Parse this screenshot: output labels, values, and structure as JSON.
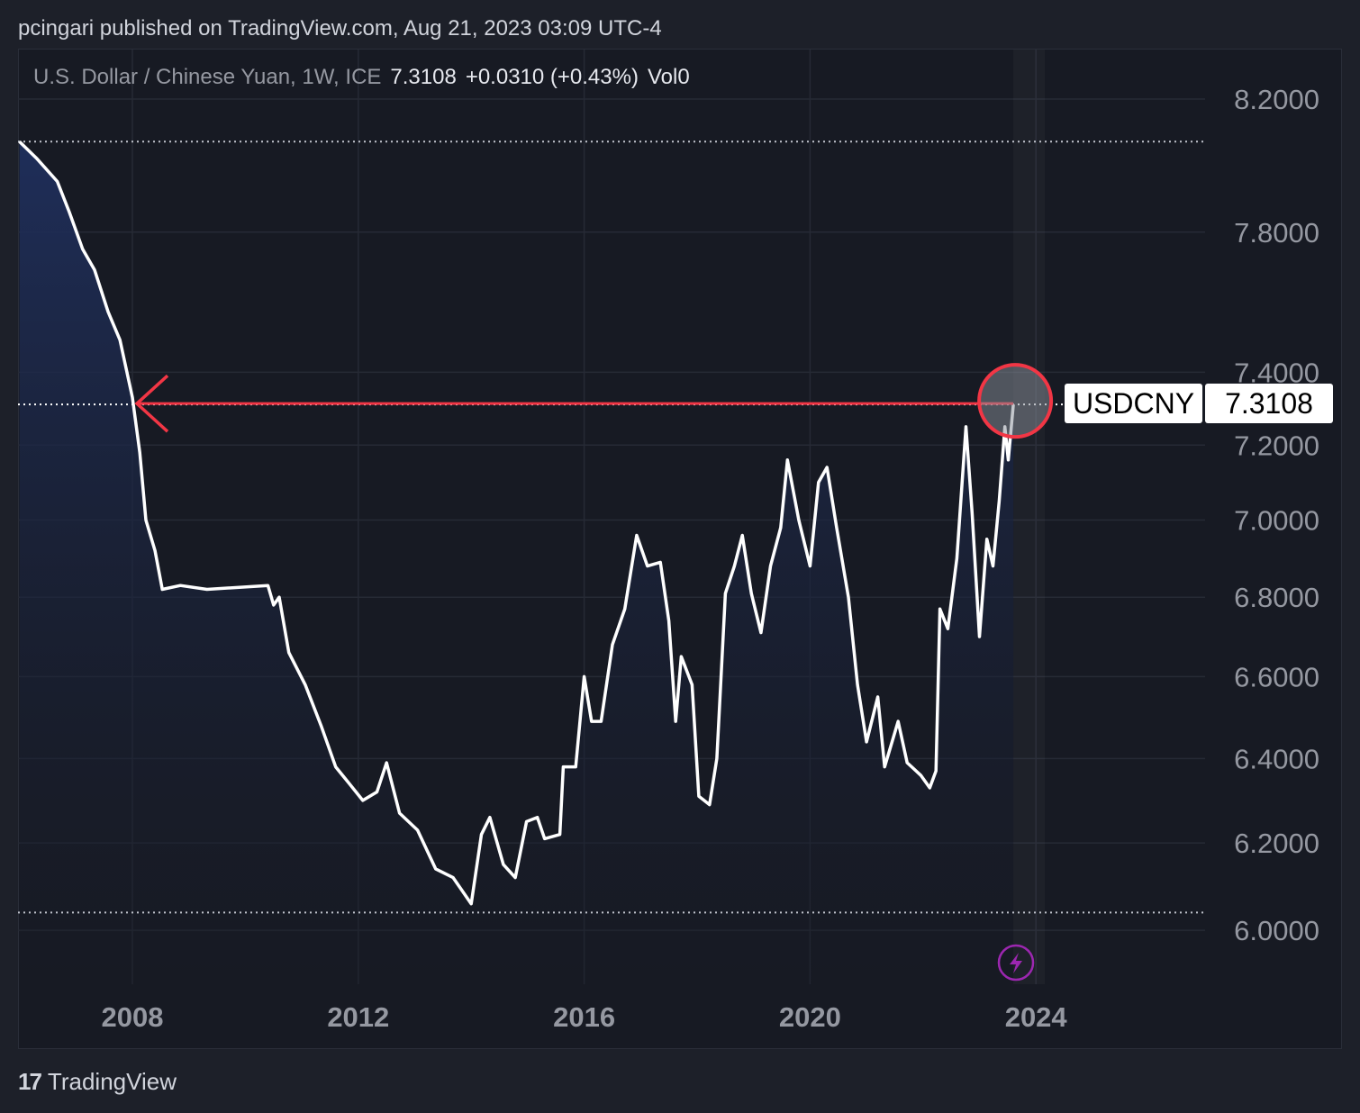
{
  "header": {
    "published": "pcingari published on TradingView.com, Aug 21, 2023 03:09 UTC-4"
  },
  "legend": {
    "symbol": "U.S. Dollar / Chinese Yuan, 1W, ICE",
    "last": "7.3108",
    "change": "+0.0310 (+0.43%)",
    "volume": "Vol0"
  },
  "price_tag": {
    "symbol": "USDCNY",
    "value": "7.3108"
  },
  "brand": {
    "logo": "TradingView"
  },
  "colors": {
    "line": "#ffffff",
    "annotation": "#f23645",
    "fill_top": "#1f2f5c",
    "alert_icon": "#9c27b0"
  },
  "chart_data": {
    "type": "area",
    "title": "U.S. Dollar / Chinese Yuan, 1W, ICE",
    "xlabel": "",
    "ylabel": "",
    "y_scale": "log",
    "ylim": [
      5.9,
      8.25
    ],
    "xlim": [
      2006.0,
      2025.4
    ],
    "x_ticks": [
      "2008",
      "2012",
      "2016",
      "2020",
      "2024"
    ],
    "x_tick_values": [
      2008,
      2012,
      2016,
      2020,
      2024
    ],
    "y_ticks": [
      "8.2000",
      "7.8000",
      "7.4000",
      "7.2000",
      "7.0000",
      "6.8000",
      "6.6000",
      "6.4000",
      "6.2000",
      "6.0000"
    ],
    "y_tick_values": [
      8.2,
      7.8,
      7.4,
      7.2,
      7.0,
      6.8,
      6.6,
      6.4,
      6.2,
      6.0
    ],
    "grid": true,
    "reference_lines": {
      "high": 8.07,
      "low": 6.04,
      "current": 7.3108
    },
    "annotation": "arrow from current price back to 2008 level, circle at latest point",
    "series": [
      {
        "name": "USDCNY",
        "x": [
          2006.0,
          2006.3,
          2006.67,
          2006.88,
          2007.12,
          2007.33,
          2007.57,
          2007.78,
          2008.0,
          2008.13,
          2008.24,
          2008.4,
          2008.53,
          2008.85,
          2009.32,
          2010.4,
          2010.5,
          2010.6,
          2010.77,
          2011.06,
          2011.34,
          2011.6,
          2011.84,
          2012.08,
          2012.33,
          2012.5,
          2012.73,
          2013.05,
          2013.37,
          2013.68,
          2014.0,
          2014.18,
          2014.33,
          2014.57,
          2014.78,
          2014.98,
          2015.17,
          2015.3,
          2015.57,
          2015.63,
          2015.85,
          2016.0,
          2016.13,
          2016.3,
          2016.5,
          2016.72,
          2016.93,
          2017.12,
          2017.35,
          2017.5,
          2017.62,
          2017.72,
          2017.91,
          2018.03,
          2018.22,
          2018.35,
          2018.5,
          2018.66,
          2018.8,
          2018.96,
          2019.13,
          2019.3,
          2019.48,
          2019.6,
          2019.8,
          2020.0,
          2020.15,
          2020.3,
          2020.47,
          2020.68,
          2020.84,
          2021.0,
          2021.2,
          2021.32,
          2021.56,
          2021.72,
          2021.96,
          2022.12,
          2022.23,
          2022.3,
          2022.44,
          2022.6,
          2022.76,
          2022.87,
          2023.0,
          2023.13,
          2023.24,
          2023.35,
          2023.45,
          2023.51,
          2023.6
        ],
        "values": [
          8.07,
          8.02,
          7.95,
          7.86,
          7.75,
          7.69,
          7.57,
          7.49,
          7.33,
          7.18,
          7.0,
          6.92,
          6.82,
          6.83,
          6.82,
          6.83,
          6.78,
          6.8,
          6.66,
          6.58,
          6.48,
          6.38,
          6.34,
          6.3,
          6.32,
          6.39,
          6.27,
          6.23,
          6.14,
          6.12,
          6.06,
          6.22,
          6.26,
          6.15,
          6.12,
          6.25,
          6.26,
          6.21,
          6.22,
          6.38,
          6.38,
          6.6,
          6.49,
          6.49,
          6.68,
          6.77,
          6.96,
          6.88,
          6.89,
          6.74,
          6.49,
          6.65,
          6.58,
          6.31,
          6.29,
          6.4,
          6.81,
          6.88,
          6.96,
          6.81,
          6.71,
          6.88,
          6.98,
          7.16,
          7.0,
          6.88,
          7.1,
          7.14,
          6.98,
          6.8,
          6.58,
          6.44,
          6.55,
          6.38,
          6.49,
          6.39,
          6.36,
          6.33,
          6.37,
          6.77,
          6.72,
          6.9,
          7.25,
          7.02,
          6.7,
          6.95,
          6.88,
          7.05,
          7.25,
          7.16,
          7.3108
        ]
      }
    ]
  }
}
